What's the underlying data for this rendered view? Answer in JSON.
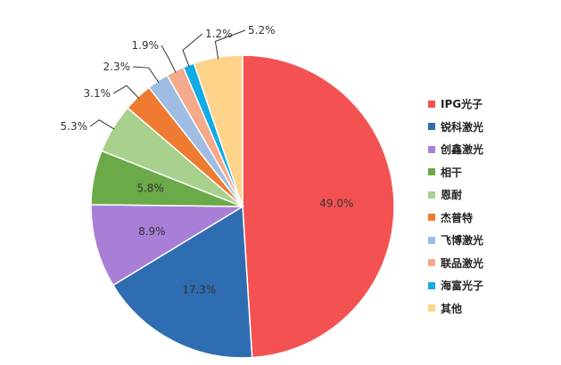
{
  "chart_data": {
    "type": "pie",
    "title": "",
    "unit": "%",
    "slices": [
      {
        "label": "IPG光子",
        "value": 49.0,
        "display": "49.0%",
        "color": "#F45252"
      },
      {
        "label": "锐科激光",
        "value": 17.3,
        "display": "17.3%",
        "color": "#2E6DB1"
      },
      {
        "label": "创鑫激光",
        "value": 8.9,
        "display": "8.9%",
        "color": "#A97ED6"
      },
      {
        "label": "相干",
        "value": 5.8,
        "display": "5.8%",
        "color": "#6AAA48"
      },
      {
        "label": "恩耐",
        "value": 5.3,
        "display": "5.3%",
        "color": "#A8D18D"
      },
      {
        "label": "杰普特",
        "value": 3.1,
        "display": "3.1%",
        "color": "#EE7B31"
      },
      {
        "label": "飞博激光",
        "value": 2.3,
        "display": "2.3%",
        "color": "#9FBCE3"
      },
      {
        "label": "联品激光",
        "value": 1.9,
        "display": "1.9%",
        "color": "#F4A98B"
      },
      {
        "label": "海富光子",
        "value": 1.2,
        "display": "1.2%",
        "color": "#13ABE3"
      },
      {
        "label": "其他",
        "value": 5.2,
        "display": "5.2%",
        "color": "#FFD38A"
      }
    ],
    "legend_position": "right",
    "start_angle_deg": 90,
    "direction": "clockwise"
  }
}
